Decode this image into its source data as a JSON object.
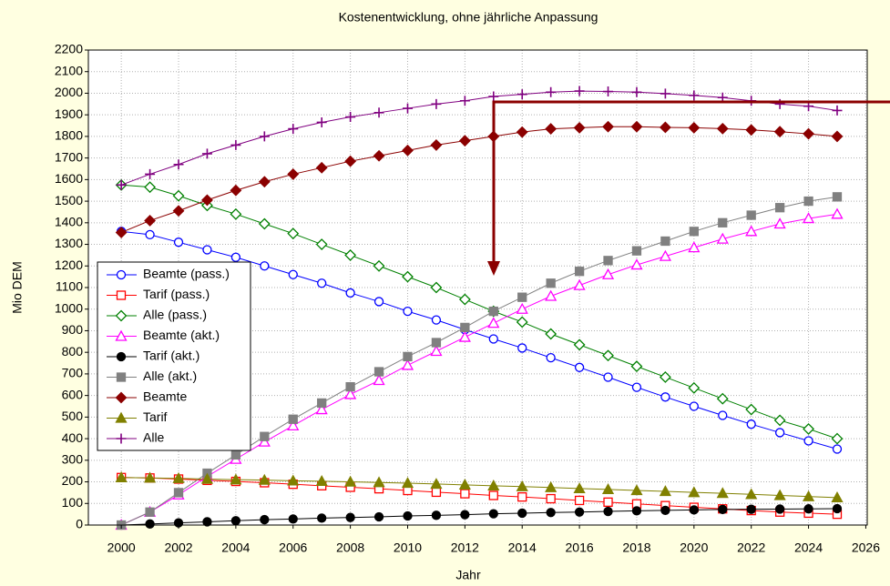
{
  "chart_data": {
    "type": "line",
    "title": "Kostenentwicklung, ohne jährliche Anpassung",
    "x_label": "Jahr",
    "y_label": "Mio DEM",
    "xlim": [
      1998.85,
      2026.05
    ],
    "ylim": [
      0,
      2200
    ],
    "xticks": [
      2000,
      2002,
      2004,
      2006,
      2008,
      2010,
      2012,
      2014,
      2016,
      2018,
      2020,
      2022,
      2024,
      2026
    ],
    "yticks": [
      0,
      100,
      200,
      300,
      400,
      500,
      600,
      700,
      800,
      900,
      1000,
      1100,
      1200,
      1300,
      1400,
      1500,
      1600,
      1700,
      1800,
      1900,
      2000,
      2100,
      2200
    ],
    "grid": true,
    "legend": "left",
    "x": [
      2000,
      2001,
      2002,
      2003,
      2004,
      2005,
      2006,
      2007,
      2008,
      2009,
      2010,
      2011,
      2012,
      2013,
      2014,
      2015,
      2016,
      2017,
      2018,
      2019,
      2020,
      2021,
      2022,
      2023,
      2024,
      2025
    ],
    "series": [
      {
        "name": "Beamte (pass.)",
        "color": "#0000ff",
        "marker": "circle-open",
        "values": [
          1360,
          1345,
          1310,
          1275,
          1240,
          1200,
          1160,
          1120,
          1075,
          1035,
          990,
          950,
          905,
          862,
          820,
          775,
          730,
          685,
          638,
          593,
          550,
          508,
          467,
          428,
          390,
          352
        ]
      },
      {
        "name": "Tarif (pass.)",
        "color": "#ff0000",
        "marker": "square-open",
        "values": [
          220,
          218,
          213,
          207,
          202,
          196,
          189,
          182,
          175,
          168,
          160,
          152,
          145,
          137,
          130,
          122,
          114,
          106,
          98,
          90,
          82,
          75,
          67,
          60,
          55,
          50
        ]
      },
      {
        "name": "Alle (pass.)",
        "color": "#008000",
        "marker": "diamond-open",
        "values": [
          1575,
          1565,
          1525,
          1480,
          1440,
          1395,
          1350,
          1300,
          1250,
          1200,
          1150,
          1100,
          1045,
          990,
          940,
          885,
          835,
          785,
          735,
          685,
          635,
          585,
          535,
          485,
          445,
          400
        ]
      },
      {
        "name": "Beamte (akt.)",
        "color": "#ff00ff",
        "marker": "triangle-open",
        "values": [
          0,
          60,
          140,
          225,
          305,
          385,
          460,
          535,
          605,
          670,
          740,
          805,
          870,
          935,
          1000,
          1060,
          1110,
          1160,
          1205,
          1245,
          1285,
          1325,
          1360,
          1395,
          1420,
          1440
        ]
      },
      {
        "name": "Tarif (akt.)",
        "color": "#000000",
        "marker": "circle-filled",
        "values": [
          0,
          5,
          10,
          15,
          20,
          25,
          28,
          32,
          35,
          38,
          42,
          45,
          48,
          52,
          55,
          58,
          60,
          63,
          66,
          68,
          70,
          72,
          73,
          74,
          75,
          76
        ]
      },
      {
        "name": "Alle (akt.)",
        "color": "#808080",
        "marker": "square-filled",
        "values": [
          0,
          60,
          150,
          240,
          325,
          410,
          490,
          565,
          640,
          710,
          780,
          845,
          915,
          990,
          1055,
          1120,
          1175,
          1225,
          1270,
          1315,
          1360,
          1400,
          1435,
          1470,
          1500,
          1520
        ]
      },
      {
        "name": "Beamte",
        "color": "#8b0000",
        "marker": "diamond-filled",
        "values": [
          1355,
          1410,
          1455,
          1505,
          1550,
          1590,
          1625,
          1655,
          1685,
          1710,
          1735,
          1760,
          1780,
          1800,
          1820,
          1835,
          1840,
          1845,
          1845,
          1842,
          1840,
          1836,
          1830,
          1822,
          1812,
          1800
        ]
      },
      {
        "name": "Tarif",
        "color": "#808000",
        "marker": "triangle-filled",
        "values": [
          220,
          218,
          216,
          213,
          210,
          208,
          205,
          203,
          200,
          197,
          194,
          190,
          186,
          182,
          178,
          174,
          169,
          165,
          160,
          156,
          151,
          147,
          142,
          137,
          132,
          127
        ]
      },
      {
        "name": "Alle",
        "color": "#800080",
        "marker": "plus",
        "values": [
          1575,
          1625,
          1670,
          1720,
          1760,
          1800,
          1835,
          1865,
          1890,
          1910,
          1930,
          1950,
          1965,
          1985,
          1995,
          2005,
          2010,
          2008,
          2005,
          1998,
          1990,
          1980,
          1965,
          1950,
          1940,
          1920
        ]
      }
    ]
  }
}
